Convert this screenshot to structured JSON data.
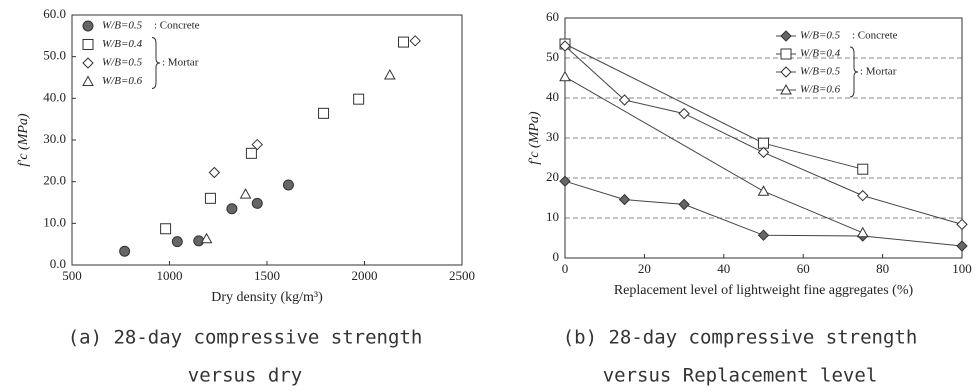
{
  "chart_data": [
    {
      "type": "scatter",
      "ylabel": "f′c (MPa)",
      "xlabel": "Dry density (kg/m³)",
      "caption": [
        "(a) 28-day compressive strength",
        "versus dry"
      ],
      "xlim": [
        500,
        2500
      ],
      "xticks": [
        500,
        1000,
        1500,
        2000,
        2500
      ],
      "ylim": [
        0,
        60
      ],
      "yticks": [
        {
          "value": 0,
          "label": "0.0"
        },
        {
          "value": 10,
          "label": "10.0"
        },
        {
          "value": 20,
          "label": "20.0"
        },
        {
          "value": 30,
          "label": "30.0"
        },
        {
          "value": 40,
          "label": "40.0"
        },
        {
          "value": 50,
          "label": "50.0"
        },
        {
          "value": 60,
          "label": "60.0"
        }
      ],
      "grid": false,
      "annotations": [
        ": Concrete",
        ": Mortar"
      ],
      "series": [
        {
          "name": "W/B=0.5",
          "marker": "circle",
          "color": "#666666",
          "x": [
            770,
            1040,
            1150,
            1320,
            1450,
            1610
          ],
          "values": [
            3.3,
            5.6,
            5.8,
            13.5,
            14.8,
            19.2
          ]
        },
        {
          "name": "W/B=0.4",
          "marker": "square",
          "color": "#ffffff",
          "x": [
            980,
            1210,
            1420,
            1790,
            1970,
            2200
          ],
          "values": [
            8.7,
            16,
            26.8,
            36.4,
            39.8,
            53.5
          ]
        },
        {
          "name": "W/B=0.5",
          "marker": "diamond",
          "color": "#ffffff",
          "x": [
            1230,
            1450,
            2260
          ],
          "values": [
            22.2,
            28.9,
            53.8
          ]
        },
        {
          "name": "W/B=0.6",
          "marker": "triangle",
          "color": "#ffffff",
          "x": [
            1190,
            1390,
            2130
          ],
          "values": [
            6.3,
            17,
            45.6
          ]
        }
      ]
    },
    {
      "type": "line",
      "ylabel": "f′c (MPa)",
      "xlabel": "Replacement level of lightweight fine aggregates (%)",
      "caption": [
        "(b) 28-day compressive strength",
        "versus Replacement level"
      ],
      "xlim": [
        0,
        100
      ],
      "xticks": [
        0,
        20,
        40,
        60,
        80,
        100
      ],
      "ylim": [
        0,
        60
      ],
      "yticks": [
        0,
        10,
        20,
        30,
        40,
        50,
        60
      ],
      "grid": true,
      "grid_color": "#888888",
      "annotations": [
        ": Concrete",
        ": Mortar"
      ],
      "series": [
        {
          "name": "W/B=0.5",
          "marker": "diamond",
          "color": "#666666",
          "x": [
            0,
            15,
            30,
            50,
            75,
            100
          ],
          "values": [
            19.2,
            14.6,
            13.4,
            5.7,
            5.5,
            3.0
          ]
        },
        {
          "name": "W/B=0.4",
          "marker": "square",
          "color": "#ffffff",
          "x": [
            0,
            50,
            75
          ],
          "values": [
            53.5,
            28.7,
            22.2
          ]
        },
        {
          "name": "W/B=0.5",
          "marker": "diamond",
          "color": "#ffffff",
          "x": [
            0,
            15,
            30,
            50,
            75,
            100
          ],
          "values": [
            53.0,
            39.5,
            36.1,
            26.4,
            15.6,
            8.4
          ]
        },
        {
          "name": "W/B=0.6",
          "marker": "triangle",
          "color": "#ffffff",
          "x": [
            0,
            50,
            75
          ],
          "values": [
            45.3,
            16.7,
            6.3
          ]
        }
      ]
    }
  ]
}
